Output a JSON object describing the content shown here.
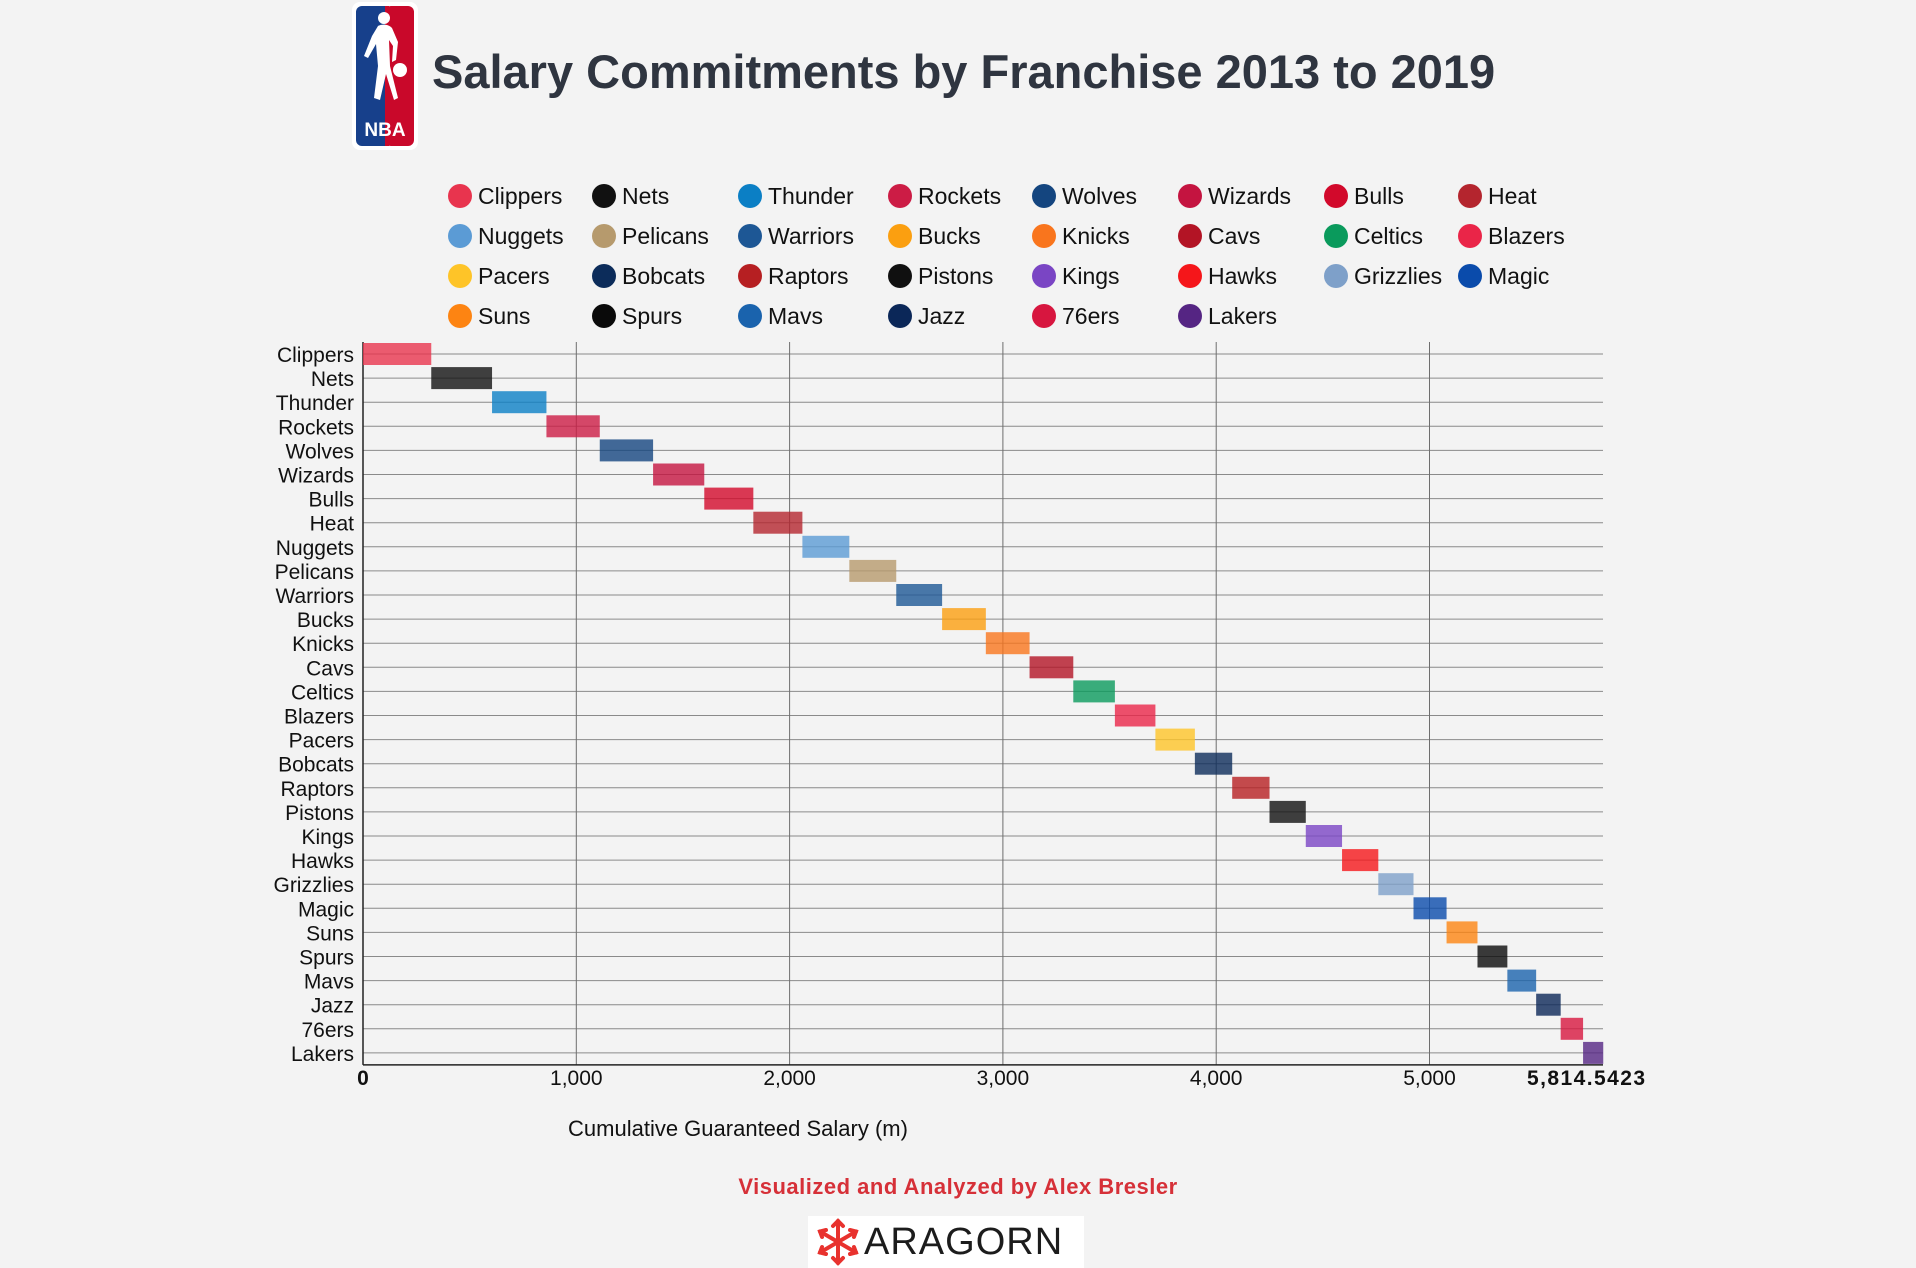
{
  "title": "Salary Commitments by Franchise 2013 to 2019",
  "logo": {
    "text": "NBA",
    "colors": {
      "blue": "#17408b",
      "red": "#c9082a"
    }
  },
  "credit": "Visualized and Analyzed by Alex Bresler",
  "footer_logo": {
    "text": "ARAGORN",
    "color": "#e8322e"
  },
  "chart_data": {
    "type": "bar",
    "variant": "waterfall",
    "orientation": "horizontal",
    "title": "Salary Commitments by Franchise 2013 to 2019",
    "xlabel": "Cumulative Guaranteed Salary (m)",
    "ylabel": "",
    "xlim": [
      0,
      5814.5423
    ],
    "x_ticks": [
      "0",
      "1,000",
      "2,000",
      "3,000",
      "4,000",
      "5,000",
      "5,814.5423"
    ],
    "x_tick_values": [
      0,
      1000,
      2000,
      3000,
      4000,
      5000,
      5814.5423
    ],
    "grid": true,
    "legend_position": "top",
    "categories": [
      "Clippers",
      "Nets",
      "Thunder",
      "Rockets",
      "Wolves",
      "Wizards",
      "Bulls",
      "Heat",
      "Nuggets",
      "Pelicans",
      "Warriors",
      "Bucks",
      "Knicks",
      "Cavs",
      "Celtics",
      "Blazers",
      "Pacers",
      "Bobcats",
      "Raptors",
      "Pistons",
      "Kings",
      "Hawks",
      "Grizzlies",
      "Magic",
      "Suns",
      "Spurs",
      "Mavs",
      "Jazz",
      "76ers",
      "Lakers"
    ],
    "starts": [
      0,
      320,
      605,
      860,
      1110,
      1360,
      1600,
      1830,
      2060,
      2280,
      2500,
      2715,
      2920,
      3125,
      3330,
      3525,
      3715,
      3900,
      4075,
      4250,
      4420,
      4590,
      4760,
      4925,
      5080,
      5225,
      5365,
      5500,
      5615,
      5720
    ],
    "values": [
      320,
      285,
      255,
      250,
      250,
      240,
      230,
      230,
      220,
      220,
      215,
      205,
      205,
      205,
      195,
      190,
      185,
      175,
      175,
      170,
      170,
      170,
      165,
      155,
      145,
      140,
      135,
      115,
      105,
      94.54
    ],
    "colors": [
      "#e8344e",
      "#111111",
      "#0b7fc5",
      "#cc1c45",
      "#14457f",
      "#c41440",
      "#d2092b",
      "#b4252e",
      "#5b9bd5",
      "#b69a6d",
      "#1d5795",
      "#fb9f10",
      "#f9751d",
      "#b31425",
      "#0a9a5c",
      "#ea2548",
      "#fec428",
      "#0c2c5a",
      "#b61f22",
      "#101010",
      "#7a45c4",
      "#f5161a",
      "#7ea0c9",
      "#0a4bab",
      "#fd8412",
      "#0a0a0a",
      "#1a63ad",
      "#0b2758",
      "#d7163f",
      "#552583"
    ]
  }
}
